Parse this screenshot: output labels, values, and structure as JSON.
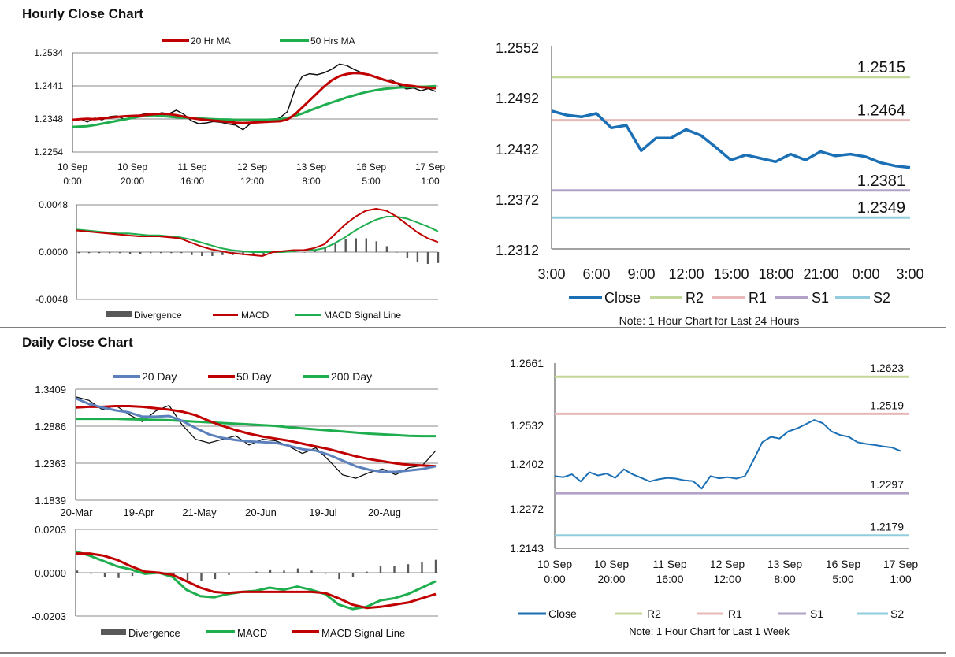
{
  "sections": {
    "hourly_title": "Hourly Close Chart",
    "daily_title": "Daily Close Chart"
  },
  "colors": {
    "ma_red": "#c00000",
    "ma_green": "#1fae4e",
    "ma_blue": "#5b80bb",
    "close_blue": "#1a6fb5",
    "r2": "#c4d79b",
    "r1": "#e6b9b8",
    "s1": "#b3a2c7",
    "s2": "#93cddd",
    "divergence": "#595959",
    "grid": "#888888"
  },
  "chart_data": [
    {
      "id": "hourly_ma",
      "type": "line",
      "y_tick_labels": [
        "1.2534",
        "1.2441",
        "1.2348",
        "1.2254"
      ],
      "ylim": [
        1.2254,
        1.2534
      ],
      "x_tick_labels": [
        [
          "10 Sep",
          "0:00"
        ],
        [
          "10 Sep",
          "20:00"
        ],
        [
          "11 Sep",
          "16:00"
        ],
        [
          "12 Sep",
          "12:00"
        ],
        [
          "13 Sep",
          "8:00"
        ],
        [
          "16 Sep",
          "5:00"
        ],
        [
          "17 Sep",
          "1:00"
        ]
      ],
      "legend": [
        "20 Hr MA",
        "50 Hrs MA"
      ],
      "series": [
        {
          "name": "Close",
          "values": [
            1.2345,
            1.2348,
            1.2339,
            1.235,
            1.2345,
            1.2354,
            1.2356,
            1.2346,
            1.2352,
            1.2358,
            1.2363,
            1.2357,
            1.2365,
            1.2362,
            1.2372,
            1.2361,
            1.2343,
            1.2334,
            1.2336,
            1.234,
            1.2338,
            1.2333,
            1.233,
            1.2317,
            1.2334,
            1.2345,
            1.2339,
            1.2342,
            1.2351,
            1.2368,
            1.243,
            1.2468,
            1.2475,
            1.2472,
            1.2478,
            1.2488,
            1.2502,
            1.2498,
            1.2487,
            1.2478,
            1.247,
            1.2467,
            1.2456,
            1.2458,
            1.2444,
            1.2432,
            1.2435,
            1.2427,
            1.2433,
            1.2425
          ]
        },
        {
          "name": "20 Hr MA",
          "values": [
            1.2345,
            1.2347,
            1.2348,
            1.2347,
            1.2349,
            1.2351,
            1.2353,
            1.2355,
            1.2356,
            1.2357,
            1.2359,
            1.2361,
            1.2362,
            1.2361,
            1.2358,
            1.2354,
            1.235,
            1.2347,
            1.2345,
            1.2343,
            1.2341,
            1.2339,
            1.2337,
            1.2336,
            1.2337,
            1.2338,
            1.2339,
            1.234,
            1.2341,
            1.2346,
            1.236,
            1.238,
            1.24,
            1.242,
            1.244,
            1.2457,
            1.2468,
            1.2474,
            1.2477,
            1.2476,
            1.2472,
            1.2465,
            1.2458,
            1.2452,
            1.2447,
            1.2442,
            1.244,
            1.2437,
            1.2436,
            1.2434
          ]
        },
        {
          "name": "50 Hrs MA",
          "values": [
            1.2325,
            1.2326,
            1.2327,
            1.233,
            1.2334,
            1.2338,
            1.2342,
            1.2346,
            1.235,
            1.2354,
            1.2357,
            1.2358,
            1.2356,
            1.2354,
            1.2352,
            1.2351,
            1.235,
            1.2349,
            1.2348,
            1.2347,
            1.2346,
            1.2346,
            1.2345,
            1.2345,
            1.2345,
            1.2345,
            1.2345,
            1.2346,
            1.2347,
            1.235,
            1.2356,
            1.2363,
            1.2371,
            1.2379,
            1.2387,
            1.2394,
            1.2401,
            1.2408,
            1.2414,
            1.242,
            1.2425,
            1.2429,
            1.2432,
            1.2434,
            1.2436,
            1.2437,
            1.2438,
            1.2438,
            1.2439,
            1.244
          ]
        }
      ]
    },
    {
      "id": "hourly_macd",
      "type": "line",
      "y_tick_labels": [
        "0.0048",
        "0.0000",
        "-0.0048"
      ],
      "ylim": [
        -0.0048,
        0.0048
      ],
      "legend": [
        "Divergence",
        "MACD",
        "MACD Signal Line"
      ],
      "series": [
        {
          "name": "MACD",
          "values": [
            0.0022,
            0.0021,
            0.002,
            0.0019,
            0.0018,
            0.0017,
            0.0016,
            0.0016,
            0.0016,
            0.0015,
            0.0014,
            0.001,
            0.0006,
            0.0003,
            0.0001,
            -0.0001,
            -0.0002,
            -0.0003,
            -0.0004,
            0.0,
            0.0001,
            0.0002,
            0.0002,
            0.0004,
            0.0008,
            0.0018,
            0.0028,
            0.0036,
            0.0042,
            0.0044,
            0.0042,
            0.0036,
            0.0028,
            0.002,
            0.0014,
            0.001
          ]
        },
        {
          "name": "MACD Signal Line",
          "values": [
            0.0023,
            0.0022,
            0.0021,
            0.002,
            0.0019,
            0.0019,
            0.0018,
            0.0017,
            0.0017,
            0.0016,
            0.0015,
            0.0013,
            0.001,
            0.0007,
            0.0004,
            0.0002,
            0.0001,
            0.0,
            0.0,
            0.0,
            0.0,
            0.0001,
            0.0002,
            0.0002,
            0.0004,
            0.0009,
            0.0015,
            0.0022,
            0.0028,
            0.0033,
            0.0036,
            0.0036,
            0.0034,
            0.003,
            0.0026,
            0.0021
          ]
        },
        {
          "name": "Divergence",
          "values": [
            -0.0001,
            -0.0001,
            -0.0001,
            -0.0001,
            -0.0001,
            -0.0002,
            -0.0002,
            -0.0001,
            -0.0001,
            -0.0001,
            -0.0001,
            -0.0003,
            -0.0004,
            -0.0004,
            -0.0003,
            -0.0003,
            -0.0003,
            -0.0003,
            -0.0004,
            0.0,
            0.0001,
            0.0001,
            0.0,
            0.0002,
            0.0004,
            0.0009,
            0.0013,
            0.0014,
            0.0014,
            0.0011,
            0.0006,
            0.0,
            -0.0006,
            -0.001,
            -0.0012,
            -0.0011
          ]
        }
      ]
    },
    {
      "id": "hourly_pivots",
      "type": "line",
      "y_tick_labels": [
        "1.2552",
        "1.2492",
        "1.2432",
        "1.2372",
        "1.2312"
      ],
      "ylim": [
        1.2312,
        1.2552
      ],
      "x_tick_labels": [
        "3:00",
        "6:00",
        "9:00",
        "12:00",
        "15:00",
        "18:00",
        "21:00",
        "0:00",
        "3:00"
      ],
      "levels": [
        {
          "name": "R2",
          "value": 1.2515,
          "label": "1.2515"
        },
        {
          "name": "R1",
          "value": 1.2464,
          "label": "1.2464"
        },
        {
          "name": "S1",
          "value": 1.2381,
          "label": "1.2381"
        },
        {
          "name": "S2",
          "value": 1.2349,
          "label": "1.2349"
        }
      ],
      "series": [
        {
          "name": "Close",
          "values": [
            1.2475,
            1.247,
            1.2468,
            1.2472,
            1.2455,
            1.2458,
            1.2428,
            1.2443,
            1.2443,
            1.2453,
            1.2446,
            1.2432,
            1.2417,
            1.2423,
            1.2419,
            1.2415,
            1.2424,
            1.2417,
            1.2427,
            1.2422,
            1.2424,
            1.2421,
            1.2414,
            1.241,
            1.2408
          ]
        }
      ],
      "legend": [
        "Close",
        "R2",
        "R1",
        "S1",
        "S2"
      ],
      "note": "Note: 1 Hour Chart for Last 24 Hours"
    },
    {
      "id": "daily_ma",
      "type": "line",
      "y_tick_labels": [
        "1.3409",
        "1.2886",
        "1.2363",
        "1.1839"
      ],
      "ylim": [
        1.1839,
        1.3409
      ],
      "x_tick_labels": [
        "20-Mar",
        "19-Apr",
        "21-May",
        "20-Jun",
        "19-Jul",
        "20-Aug"
      ],
      "legend": [
        "20 Day",
        "50 Day",
        "200 Day"
      ],
      "series": [
        {
          "name": "Close",
          "values": [
            1.33,
            1.325,
            1.312,
            1.318,
            1.305,
            1.295,
            1.31,
            1.318,
            1.29,
            1.27,
            1.265,
            1.27,
            1.275,
            1.262,
            1.27,
            1.268,
            1.26,
            1.25,
            1.258,
            1.24,
            1.22,
            1.215,
            1.223,
            1.228,
            1.22,
            1.23,
            1.233,
            1.254
          ]
        },
        {
          "name": "20 Day",
          "values": [
            1.328,
            1.32,
            1.315,
            1.311,
            1.308,
            1.302,
            1.302,
            1.303,
            1.296,
            1.286,
            1.277,
            1.272,
            1.269,
            1.267,
            1.266,
            1.265,
            1.261,
            1.256,
            1.254,
            1.248,
            1.24,
            1.232,
            1.227,
            1.224,
            1.224,
            1.226,
            1.228,
            1.232
          ]
        },
        {
          "name": "50 Day",
          "values": [
            1.315,
            1.316,
            1.316,
            1.317,
            1.317,
            1.316,
            1.314,
            1.312,
            1.309,
            1.304,
            1.296,
            1.289,
            1.283,
            1.278,
            1.274,
            1.271,
            1.268,
            1.264,
            1.26,
            1.256,
            1.251,
            1.246,
            1.242,
            1.239,
            1.236,
            1.234,
            1.233,
            1.232
          ]
        },
        {
          "name": "200 Day",
          "values": [
            1.299,
            1.299,
            1.299,
            1.299,
            1.2985,
            1.298,
            1.2975,
            1.297,
            1.296,
            1.295,
            1.294,
            1.293,
            1.292,
            1.291,
            1.29,
            1.289,
            1.287,
            1.2855,
            1.284,
            1.2825,
            1.281,
            1.2795,
            1.278,
            1.277,
            1.276,
            1.275,
            1.2745,
            1.2745
          ]
        }
      ]
    },
    {
      "id": "daily_macd",
      "type": "line",
      "y_tick_labels": [
        "0.0203",
        "0.0000",
        "-0.0203"
      ],
      "ylim": [
        -0.0203,
        0.0203
      ],
      "legend": [
        "Divergence",
        "MACD",
        "MACD Signal Line"
      ],
      "series": [
        {
          "name": "MACD",
          "values": [
            0.01,
            0.008,
            0.0055,
            0.003,
            0.0015,
            -0.0005,
            0.0,
            -0.002,
            -0.008,
            -0.011,
            -0.0115,
            -0.01,
            -0.009,
            -0.0085,
            -0.007,
            -0.008,
            -0.0065,
            -0.008,
            -0.01,
            -0.015,
            -0.017,
            -0.016,
            -0.013,
            -0.012,
            -0.01,
            -0.007,
            -0.004
          ]
        },
        {
          "name": "MACD Signal Line",
          "values": [
            0.009,
            0.009,
            0.008,
            0.006,
            0.003,
            0.0005,
            0.0,
            -0.001,
            -0.004,
            -0.007,
            -0.009,
            -0.0095,
            -0.009,
            -0.009,
            -0.009,
            -0.009,
            -0.009,
            -0.009,
            -0.0095,
            -0.012,
            -0.015,
            -0.0165,
            -0.016,
            -0.015,
            -0.014,
            -0.012,
            -0.01
          ]
        },
        {
          "name": "Divergence",
          "values": [
            0.001,
            -0.0005,
            -0.002,
            -0.0025,
            -0.0015,
            -0.001,
            0.0,
            -0.001,
            -0.0035,
            -0.004,
            -0.003,
            -0.001,
            0.0,
            0.0005,
            0.0015,
            0.001,
            0.002,
            0.001,
            -0.0005,
            -0.003,
            -0.002,
            0.0005,
            0.003,
            0.003,
            0.004,
            0.005,
            0.006
          ]
        }
      ]
    },
    {
      "id": "weekly_pivots",
      "type": "line",
      "y_tick_labels": [
        "1.2661",
        "1.2532",
        "1.2402",
        "1.2272",
        "1.2143"
      ],
      "ylim": [
        1.2143,
        1.2661
      ],
      "x_tick_labels": [
        [
          "10 Sep",
          "0:00"
        ],
        [
          "10 Sep",
          "20:00"
        ],
        [
          "11 Sep",
          "16:00"
        ],
        [
          "12 Sep",
          "12:00"
        ],
        [
          "13 Sep",
          "8:00"
        ],
        [
          "16 Sep",
          "5:00"
        ],
        [
          "17 Sep",
          "1:00"
        ]
      ],
      "levels": [
        {
          "name": "R2",
          "value": 1.2623,
          "label": "1.2623"
        },
        {
          "name": "R1",
          "value": 1.2519,
          "label": "1.2519"
        },
        {
          "name": "S1",
          "value": 1.2297,
          "label": "1.2297"
        },
        {
          "name": "S2",
          "value": 1.2179,
          "label": "1.2179"
        }
      ],
      "series": [
        {
          "name": "Close",
          "values": [
            1.2345,
            1.2342,
            1.235,
            1.233,
            1.2356,
            1.2347,
            1.2352,
            1.234,
            1.2364,
            1.235,
            1.234,
            1.233,
            1.2336,
            1.234,
            1.2338,
            1.2333,
            1.2331,
            1.231,
            1.2345,
            1.2339,
            1.2342,
            1.2338,
            1.2345,
            1.239,
            1.244,
            1.2455,
            1.245,
            1.247,
            1.2478,
            1.249,
            1.2502,
            1.2493,
            1.247,
            1.246,
            1.2455,
            1.244,
            1.2435,
            1.2432,
            1.2428,
            1.2425,
            1.2415
          ]
        }
      ],
      "legend": [
        "Close",
        "R2",
        "R1",
        "S1",
        "S2"
      ],
      "note": "Note: 1 Hour Chart for Last 1 Week"
    }
  ]
}
